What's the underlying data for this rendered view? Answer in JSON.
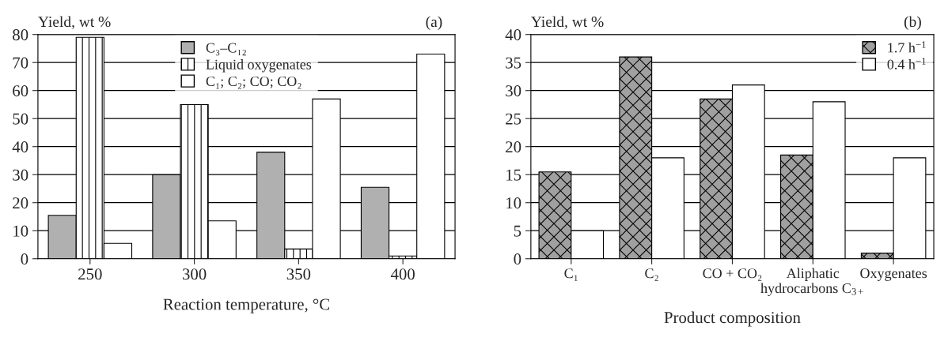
{
  "chart_data": [
    {
      "type": "bar",
      "title": "(a)",
      "ylabel": "Yield, wt %",
      "xlabel": "Reaction temperature, °C",
      "categories": [
        "250",
        "300",
        "350",
        "400"
      ],
      "series": [
        {
          "name": "C₃–C₁₂",
          "color": "#b0b0b0",
          "values": [
            15.5,
            30,
            38,
            25.5
          ]
        },
        {
          "name": "Liquid oxygenates",
          "color": "#ffffff",
          "values": [
            79,
            55,
            3.5,
            1
          ]
        },
        {
          "name": "C₁; C₂; CO; CO₂",
          "color": "#ffffff",
          "values": [
            5.5,
            13.5,
            57,
            73
          ]
        }
      ],
      "ylim": [
        0,
        80
      ],
      "yticks": [
        0,
        10,
        20,
        30,
        40,
        50,
        60,
        70,
        80
      ],
      "grid": "y",
      "legend": "top"
    },
    {
      "type": "bar",
      "title": "(b)",
      "ylabel": "Yield, wt %",
      "xlabel": "Product composition",
      "categories": [
        "C₁",
        "C₂",
        "CO + CO₂",
        "Aliphatic\nhydrocarbons C$_{3+}$",
        "Oxygenates"
      ],
      "series": [
        {
          "name": "1.7 h$^{−1}$",
          "color": "#a0a0a0",
          "values": [
            15.5,
            36,
            28.5,
            18.5,
            1
          ]
        },
        {
          "name": "0.4 h$^{−1}$",
          "color": "#ffffff",
          "values": [
            5,
            18,
            31,
            28,
            18
          ]
        }
      ],
      "ylim": [
        0,
        40
      ],
      "yticks": [
        0,
        5,
        10,
        15,
        20,
        25,
        30,
        35,
        40
      ],
      "grid": "y",
      "legend": "top right"
    }
  ]
}
